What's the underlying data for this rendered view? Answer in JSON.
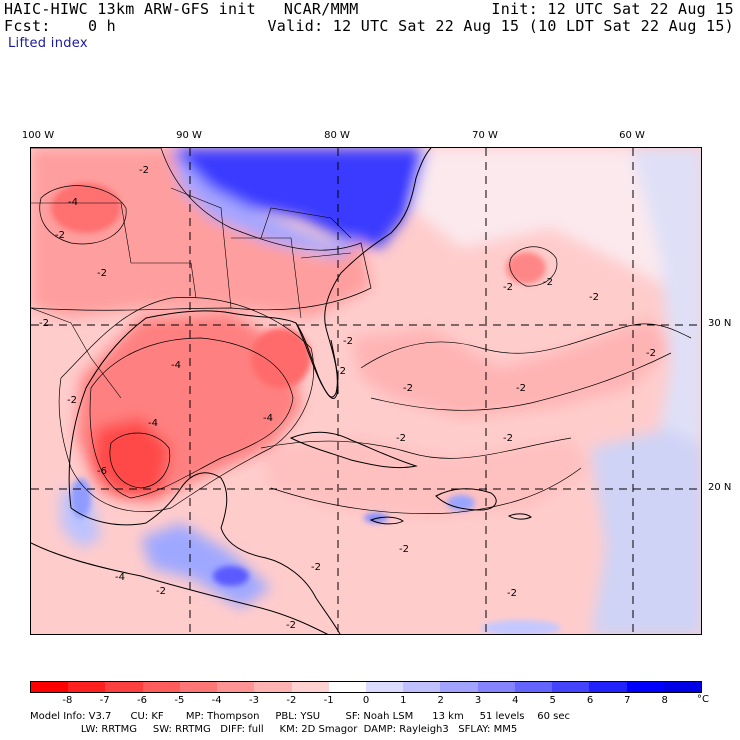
{
  "header": {
    "title": "HAIC-HIWC 13km ARW-GFS init   NCAR/MMM",
    "init": "Init: 12 UTC Sat 22 Aug 15",
    "fcst": "Fcst:    0 h",
    "valid": "Valid: 12 UTC Sat 22 Aug 15 (10 LDT Sat 22 Aug 15)",
    "field": "Lifted index"
  },
  "map": {
    "lon_labels": [
      "100 W",
      "90 W",
      "80 W",
      "70 W",
      "60 W"
    ],
    "lat_labels": [
      "30 N",
      "20 N"
    ],
    "contour_labels": [
      "-2",
      "-4",
      "-6"
    ]
  },
  "colorbar": {
    "labels": [
      "-8",
      "-7",
      "-6",
      "-5",
      "-4",
      "-3",
      "-2",
      "-1",
      "0",
      "1",
      "2",
      "3",
      "4",
      "5",
      "6",
      "7",
      "8"
    ],
    "unit": "°C",
    "colors": [
      "#ff0000",
      "#ff2020",
      "#ff4040",
      "#ff5c5c",
      "#ff7676",
      "#ff9494",
      "#ffb2b2",
      "#ffd2d2",
      "#ffffff",
      "#dcdcff",
      "#c0c0ff",
      "#a2a2ff",
      "#8484ff",
      "#6464ff",
      "#4444ff",
      "#2222ff",
      "#0000ff",
      "#0000e6"
    ]
  },
  "model_info": {
    "line1": "Model Info: V3.7      CU: KF       MP: Thompson     PBL: YSU        SF: Noah LSM      13 km     51 levels    60 sec",
    "line2": "                LW: RRTMG     SW: RRTMG   DIFF: full     KM: 2D Smagor  DAMP: Rayleigh3   SFLAY: MM5"
  }
}
